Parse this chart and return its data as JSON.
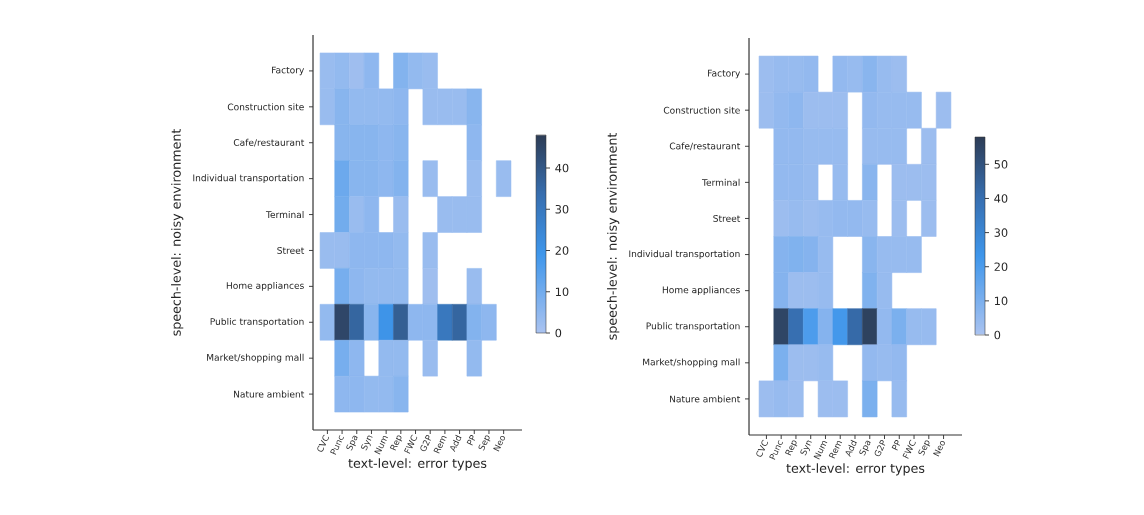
{
  "chart_data": [
    {
      "type": "heatmap",
      "xlabel": "text-level: error types",
      "ylabel": "speech-level: noisy environment",
      "categories": [
        "CVC",
        "Punc",
        "Spa",
        "Syn",
        "Num",
        "Rep",
        "FWC",
        "G2P",
        "Rem",
        "Add",
        "PP",
        "Sep",
        "Neo"
      ],
      "y_categories": [
        "Factory",
        "Construction site",
        "Cafe/restaurant",
        "Individual transportation",
        "Terminal",
        "Street",
        "Home appliances",
        "Public transportation",
        "Market/shopping mall",
        "Nature ambient"
      ],
      "cells": [
        [
          3,
          4,
          2,
          5,
          null,
          7,
          4,
          3,
          null,
          null,
          null,
          null,
          null
        ],
        [
          3,
          6,
          4,
          4,
          4,
          5,
          null,
          3,
          3,
          3,
          6,
          null,
          null
        ],
        [
          null,
          6,
          6,
          6,
          5,
          6,
          null,
          null,
          null,
          null,
          5,
          null,
          null
        ],
        [
          null,
          11,
          6,
          6,
          5,
          7,
          null,
          3,
          null,
          null,
          3,
          null,
          3
        ],
        [
          null,
          10,
          3,
          5,
          null,
          3,
          null,
          null,
          3,
          3,
          3,
          null,
          null
        ],
        [
          3,
          3,
          5,
          5,
          5,
          4,
          null,
          3,
          null,
          null,
          null,
          null,
          null
        ],
        [
          null,
          9,
          5,
          4,
          4,
          4,
          null,
          2,
          null,
          null,
          3,
          null,
          null
        ],
        [
          4,
          45,
          36,
          6,
          20,
          38,
          5,
          5,
          30,
          36,
          7,
          5,
          null
        ],
        [
          null,
          9,
          5,
          null,
          4,
          4,
          null,
          3,
          null,
          null,
          4,
          null,
          null
        ],
        [
          null,
          5,
          5,
          4,
          4,
          6,
          null,
          null,
          null,
          null,
          null,
          null,
          null
        ]
      ],
      "clim": [
        0,
        48
      ],
      "cticks": [
        0,
        10,
        20,
        30,
        40
      ]
    },
    {
      "type": "heatmap",
      "xlabel": "text-level: error types",
      "ylabel": "speech-level: noisy environment",
      "categories": [
        "CVC",
        "Punc",
        "Rep",
        "Syn",
        "Num",
        "Rem",
        "Add",
        "Spa",
        "G2P",
        "PP",
        "FWC",
        "Sep",
        "Neo"
      ],
      "y_categories": [
        "Factory",
        "Construction site",
        "Cafe/restaurant",
        "Terminal",
        "Street",
        "Individual transportation",
        "Home appliances",
        "Public transportation",
        "Market/shopping mall",
        "Nature ambient"
      ],
      "cells": [
        [
          3,
          4,
          4,
          5,
          null,
          5,
          4,
          7,
          4,
          3,
          null,
          null,
          null
        ],
        [
          3,
          5,
          6,
          3,
          3,
          3,
          null,
          5,
          4,
          4,
          4,
          null,
          3
        ],
        [
          null,
          5,
          5,
          4,
          4,
          4,
          null,
          4,
          4,
          4,
          null,
          3,
          null
        ],
        [
          null,
          5,
          5,
          4,
          null,
          4,
          null,
          7,
          null,
          3,
          3,
          3,
          null
        ],
        [
          null,
          3,
          4,
          3,
          4,
          5,
          5,
          4,
          null,
          3,
          null,
          3,
          null
        ],
        [
          null,
          8,
          9,
          8,
          4,
          null,
          null,
          7,
          4,
          4,
          4,
          null,
          null
        ],
        [
          null,
          8,
          3,
          3,
          4,
          null,
          null,
          9,
          4,
          null,
          null,
          null,
          null
        ],
        [
          null,
          55,
          40,
          20,
          8,
          22,
          42,
          56,
          5,
          10,
          4,
          4,
          null
        ],
        [
          null,
          10,
          3,
          3,
          4,
          null,
          null,
          5,
          4,
          5,
          null,
          null,
          null
        ],
        [
          3,
          4,
          3,
          null,
          3,
          3,
          null,
          10,
          null,
          4,
          null,
          null,
          null
        ]
      ],
      "clim": [
        0,
        58
      ],
      "cticks": [
        0,
        10,
        20,
        30,
        40,
        50
      ]
    }
  ]
}
